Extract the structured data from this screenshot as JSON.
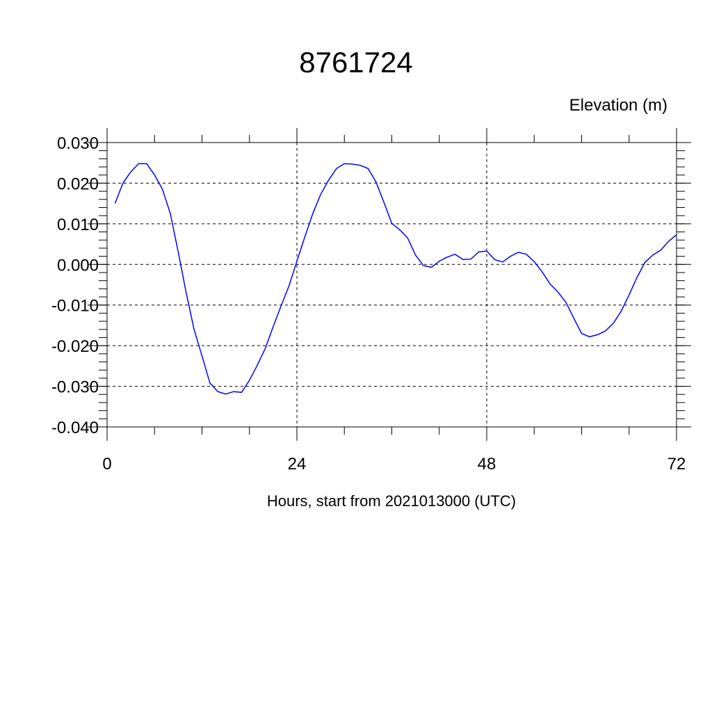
{
  "chart_data": {
    "type": "line",
    "title": "8761724",
    "ylabel": "Elevation (m)",
    "xlabel": "Hours, start from 2021013000 (UTC)",
    "xlim": [
      0,
      72
    ],
    "ylim": [
      -0.04,
      0.03
    ],
    "xticks": [
      0,
      24,
      48,
      72
    ],
    "xtick_labels": [
      "0",
      "24",
      "48",
      "72"
    ],
    "yticks": [
      0.03,
      0.02,
      0.01,
      0.0,
      -0.01,
      -0.02,
      -0.03,
      -0.04
    ],
    "ytick_labels": [
      "0.030",
      "0.020",
      "0.010",
      "0.000",
      "-0.010",
      "-0.020",
      "-0.030",
      "-0.040"
    ],
    "grid": true,
    "line_color": "#0000ff",
    "series": [
      {
        "x": [
          1,
          2,
          3,
          4,
          5,
          6,
          7,
          8,
          9,
          10,
          11,
          12,
          13,
          14,
          15,
          16,
          17,
          18,
          19,
          20,
          21,
          22,
          23,
          24,
          25,
          26,
          27,
          28,
          29,
          30,
          31,
          32,
          33,
          34,
          35,
          36,
          37,
          38,
          39,
          40,
          41,
          42,
          43,
          44,
          45,
          46,
          47,
          48,
          49,
          50,
          51,
          52,
          53,
          54,
          55,
          56,
          57,
          58,
          59,
          60,
          61,
          62,
          63,
          64,
          65,
          66,
          67,
          68,
          69,
          70,
          71,
          72
        ],
        "y": [
          0.015,
          0.02,
          0.0228,
          0.0248,
          0.0248,
          0.022,
          0.0185,
          0.0125,
          0.003,
          -0.007,
          -0.016,
          -0.0225,
          -0.0292,
          -0.0313,
          -0.0319,
          -0.0313,
          -0.0315,
          -0.0285,
          -0.0248,
          -0.0207,
          -0.0153,
          -0.0102,
          -0.0053,
          0.0008,
          0.0068,
          0.0125,
          0.0172,
          0.0207,
          0.0236,
          0.0248,
          0.0247,
          0.0244,
          0.0236,
          0.0203,
          0.0153,
          0.0101,
          0.0085,
          0.0065,
          0.0023,
          -0.0003,
          -0.0007,
          0.0008,
          0.0018,
          0.0025,
          0.0012,
          0.0013,
          0.0031,
          0.0033,
          0.0012,
          0.0006,
          0.002,
          0.003,
          0.0025,
          0.0007,
          -0.0018,
          -0.0048,
          -0.0068,
          -0.0093,
          -0.0132,
          -0.017,
          -0.0178,
          -0.0173,
          -0.0164,
          -0.0145,
          -0.0115,
          -0.0075,
          -0.0032,
          0.0005,
          0.0023,
          0.0035,
          0.0057,
          0.0073
        ]
      }
    ]
  }
}
